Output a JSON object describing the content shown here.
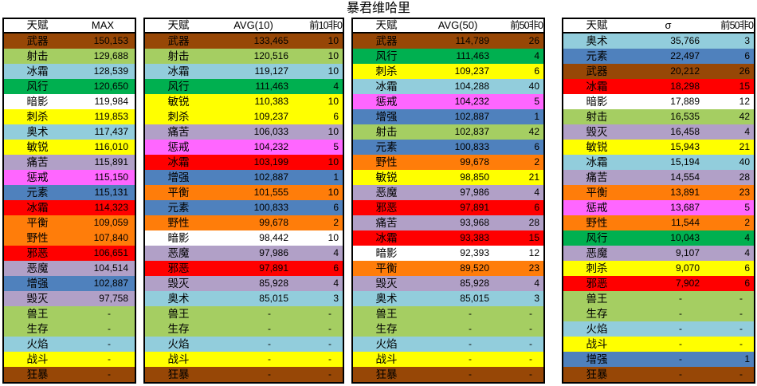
{
  "title": "暴君维哈里",
  "palette": {
    "warrior_brown": "#974706",
    "hunter_green": "#A5CE62",
    "mage_blue": "#92CDDC",
    "monk_green": "#00B050",
    "priest_white": "#FFFFFF",
    "rogue_yellow": "#FFFF00",
    "warlock_purple": "#B1A0C7",
    "paladin_pink": "#FF66FF",
    "shaman_blue": "#4F81BD",
    "dk_red": "#FF0000",
    "druid_orange": "#FF7D0A"
  },
  "tables": [
    {
      "id": "max",
      "headers": [
        "天赋",
        "MAX"
      ],
      "rows": [
        [
          "武器",
          "150,153",
          null,
          "warrior_brown"
        ],
        [
          "射击",
          "129,688",
          null,
          "hunter_green"
        ],
        [
          "冰霜",
          "128,539",
          null,
          "mage_blue"
        ],
        [
          "风行",
          "120,650",
          null,
          "monk_green"
        ],
        [
          "暗影",
          "119,984",
          null,
          "priest_white"
        ],
        [
          "刺杀",
          "119,853",
          null,
          "rogue_yellow"
        ],
        [
          "奥术",
          "117,437",
          null,
          "mage_blue"
        ],
        [
          "敏锐",
          "116,010",
          null,
          "rogue_yellow"
        ],
        [
          "痛苦",
          "115,891",
          null,
          "warlock_purple"
        ],
        [
          "惩戒",
          "115,150",
          null,
          "paladin_pink"
        ],
        [
          "元素",
          "115,131",
          null,
          "shaman_blue"
        ],
        [
          "冰霜",
          "114,323",
          null,
          "dk_red"
        ],
        [
          "平衡",
          "109,059",
          null,
          "druid_orange"
        ],
        [
          "野性",
          "107,840",
          null,
          "druid_orange"
        ],
        [
          "邪恶",
          "106,651",
          null,
          "dk_red"
        ],
        [
          "恶魔",
          "104,514",
          null,
          "warlock_purple"
        ],
        [
          "增强",
          "102,887",
          null,
          "shaman_blue"
        ],
        [
          "毁灭",
          "97,758",
          null,
          "warlock_purple"
        ],
        [
          "兽王",
          "-",
          null,
          "hunter_green"
        ],
        [
          "生存",
          "-",
          null,
          "hunter_green"
        ],
        [
          "火焰",
          "-",
          null,
          "mage_blue"
        ],
        [
          "战斗",
          "-",
          null,
          "rogue_yellow"
        ],
        [
          "狂暴",
          "-",
          null,
          "warrior_brown"
        ]
      ]
    },
    {
      "id": "avg10",
      "headers": [
        "天赋",
        "AVG(10)",
        "前10非0"
      ],
      "rows": [
        [
          "武器",
          "133,465",
          "10",
          "warrior_brown"
        ],
        [
          "射击",
          "120,516",
          "10",
          "hunter_green"
        ],
        [
          "冰霜",
          "119,127",
          "10",
          "mage_blue"
        ],
        [
          "风行",
          "111,463",
          "4",
          "monk_green"
        ],
        [
          "敏锐",
          "110,383",
          "10",
          "rogue_yellow"
        ],
        [
          "刺杀",
          "109,237",
          "6",
          "rogue_yellow"
        ],
        [
          "痛苦",
          "106,033",
          "10",
          "warlock_purple"
        ],
        [
          "惩戒",
          "104,232",
          "5",
          "paladin_pink"
        ],
        [
          "冰霜",
          "103,199",
          "10",
          "dk_red"
        ],
        [
          "增强",
          "102,887",
          "1",
          "shaman_blue"
        ],
        [
          "平衡",
          "101,555",
          "10",
          "druid_orange"
        ],
        [
          "元素",
          "100,833",
          "6",
          "shaman_blue"
        ],
        [
          "野性",
          "99,678",
          "2",
          "druid_orange"
        ],
        [
          "暗影",
          "98,442",
          "10",
          "priest_white"
        ],
        [
          "恶魔",
          "97,986",
          "4",
          "warlock_purple"
        ],
        [
          "邪恶",
          "97,891",
          "6",
          "dk_red"
        ],
        [
          "毁灭",
          "85,928",
          "4",
          "warlock_purple"
        ],
        [
          "奥术",
          "85,015",
          "3",
          "mage_blue"
        ],
        [
          "兽王",
          "-",
          "-",
          "hunter_green"
        ],
        [
          "生存",
          "-",
          "-",
          "hunter_green"
        ],
        [
          "火焰",
          "-",
          "-",
          "mage_blue"
        ],
        [
          "战斗",
          "-",
          "-",
          "rogue_yellow"
        ],
        [
          "狂暴",
          "-",
          "-",
          "warrior_brown"
        ]
      ]
    },
    {
      "id": "avg50",
      "headers": [
        "天赋",
        "AVG(50)",
        "前50非0"
      ],
      "rows": [
        [
          "武器",
          "114,789",
          "26",
          "warrior_brown"
        ],
        [
          "风行",
          "111,463",
          "4",
          "monk_green"
        ],
        [
          "刺杀",
          "109,237",
          "6",
          "rogue_yellow"
        ],
        [
          "冰霜",
          "104,288",
          "40",
          "mage_blue"
        ],
        [
          "惩戒",
          "104,232",
          "5",
          "paladin_pink"
        ],
        [
          "增强",
          "102,887",
          "1",
          "shaman_blue"
        ],
        [
          "射击",
          "102,837",
          "42",
          "hunter_green"
        ],
        [
          "元素",
          "100,833",
          "6",
          "shaman_blue"
        ],
        [
          "野性",
          "99,678",
          "2",
          "druid_orange"
        ],
        [
          "敏锐",
          "98,850",
          "21",
          "rogue_yellow"
        ],
        [
          "恶魔",
          "97,986",
          "4",
          "warlock_purple"
        ],
        [
          "邪恶",
          "97,891",
          "6",
          "dk_red"
        ],
        [
          "痛苦",
          "93,968",
          "28",
          "warlock_purple"
        ],
        [
          "冰霜",
          "93,383",
          "15",
          "dk_red"
        ],
        [
          "暗影",
          "92,393",
          "12",
          "priest_white"
        ],
        [
          "平衡",
          "89,520",
          "23",
          "druid_orange"
        ],
        [
          "毁灭",
          "85,928",
          "4",
          "warlock_purple"
        ],
        [
          "奥术",
          "85,015",
          "3",
          "mage_blue"
        ],
        [
          "兽王",
          "-",
          "-",
          "hunter_green"
        ],
        [
          "生存",
          "-",
          "-",
          "hunter_green"
        ],
        [
          "火焰",
          "-",
          "-",
          "mage_blue"
        ],
        [
          "战斗",
          "-",
          "-",
          "rogue_yellow"
        ],
        [
          "狂暴",
          "-",
          "-",
          "warrior_brown"
        ]
      ]
    },
    {
      "id": "sigma",
      "headers": [
        "天赋",
        "σ",
        "前50非0"
      ],
      "rows": [
        [
          "奥术",
          "35,766",
          "3",
          "mage_blue"
        ],
        [
          "元素",
          "22,497",
          "6",
          "shaman_blue"
        ],
        [
          "武器",
          "20,212",
          "26",
          "warrior_brown"
        ],
        [
          "冰霜",
          "18,298",
          "15",
          "dk_red"
        ],
        [
          "暗影",
          "17,889",
          "12",
          "priest_white"
        ],
        [
          "射击",
          "16,535",
          "42",
          "hunter_green"
        ],
        [
          "毁灭",
          "16,458",
          "4",
          "warlock_purple"
        ],
        [
          "敏锐",
          "15,943",
          "21",
          "rogue_yellow"
        ],
        [
          "冰霜",
          "15,194",
          "40",
          "mage_blue"
        ],
        [
          "痛苦",
          "14,554",
          "28",
          "warlock_purple"
        ],
        [
          "平衡",
          "13,891",
          "23",
          "druid_orange"
        ],
        [
          "惩戒",
          "13,687",
          "5",
          "paladin_pink"
        ],
        [
          "野性",
          "11,544",
          "2",
          "druid_orange"
        ],
        [
          "风行",
          "10,043",
          "4",
          "monk_green"
        ],
        [
          "恶魔",
          "9,107",
          "4",
          "warlock_purple"
        ],
        [
          "刺杀",
          "9,070",
          "6",
          "rogue_yellow"
        ],
        [
          "邪恶",
          "7,902",
          "6",
          "dk_red"
        ],
        [
          "兽王",
          "-",
          "-",
          "hunter_green"
        ],
        [
          "生存",
          "-",
          "-",
          "hunter_green"
        ],
        [
          "火焰",
          "-",
          "-",
          "mage_blue"
        ],
        [
          "战斗",
          "-",
          "-",
          "rogue_yellow"
        ],
        [
          "增强",
          "-",
          "1",
          "shaman_blue"
        ],
        [
          "狂暴",
          "-",
          "-",
          "warrior_brown"
        ]
      ]
    }
  ]
}
